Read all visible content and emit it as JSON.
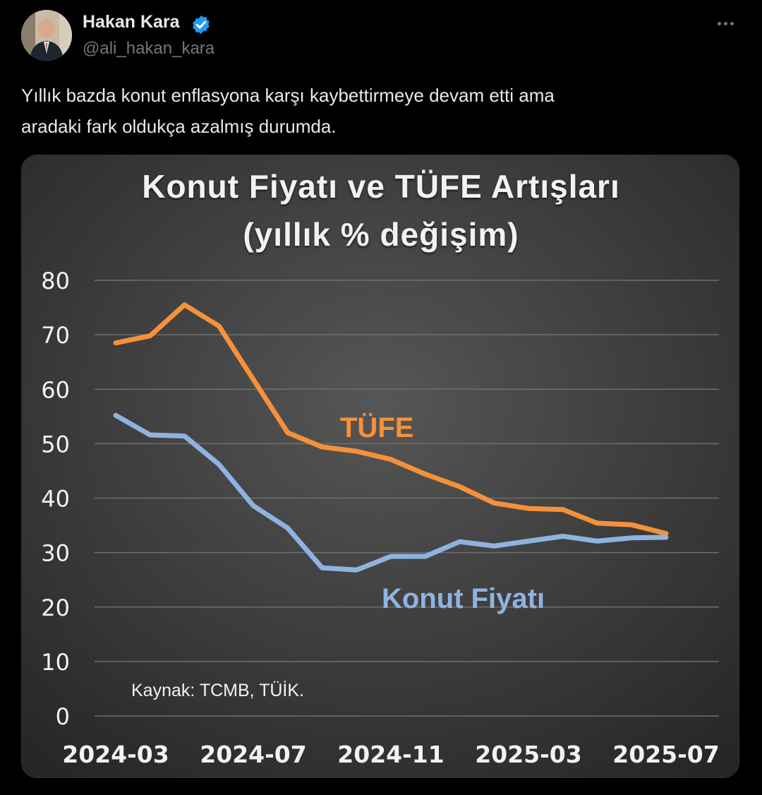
{
  "post": {
    "author": {
      "display_name": "Hakan Kara",
      "handle": "@ali_hakan_kara",
      "verified": true,
      "verified_color": "#1d9bf0"
    },
    "more_icon": "more-horizontal-icon",
    "text": "Yıllık bazda konut enflasyona karşı kaybettirmeye devam etti ama\naradaki fark oldukça azalmış durumda."
  },
  "chart_data": {
    "type": "line",
    "title": "Konut Fiyatı ve TÜFE Artışları",
    "subtitle": "(yıllık % değişim)",
    "source": "Kaynak: TCMB, TÜİK.",
    "x": [
      "2024-03",
      "2024-04",
      "2024-05",
      "2024-06",
      "2024-07",
      "2024-08",
      "2024-09",
      "2024-10",
      "2024-11",
      "2024-12",
      "2025-01",
      "2025-02",
      "2025-03",
      "2025-04",
      "2025-05",
      "2025-06",
      "2025-07"
    ],
    "x_tick_labels": [
      "2024-03",
      "2024-07",
      "2024-11",
      "2025-03",
      "2025-07"
    ],
    "y_ticks": [
      0,
      10,
      20,
      30,
      40,
      50,
      60,
      70,
      80
    ],
    "ylim": [
      0,
      80
    ],
    "grid": true,
    "series": [
      {
        "name": "TÜFE",
        "color": "#f5913a",
        "values": [
          68.5,
          69.8,
          75.5,
          71.6,
          61.8,
          52.0,
          49.4,
          48.6,
          47.1,
          44.4,
          42.1,
          39.1,
          38.1,
          37.9,
          35.4,
          35.1,
          33.5
        ]
      },
      {
        "name": "Konut Fiyatı",
        "color": "#8fb3e0",
        "values": [
          55.2,
          51.6,
          51.4,
          46.2,
          38.6,
          34.5,
          27.2,
          26.8,
          29.3,
          29.3,
          32.0,
          31.2,
          32.1,
          33.0,
          32.1,
          32.7,
          32.8
        ]
      }
    ]
  }
}
